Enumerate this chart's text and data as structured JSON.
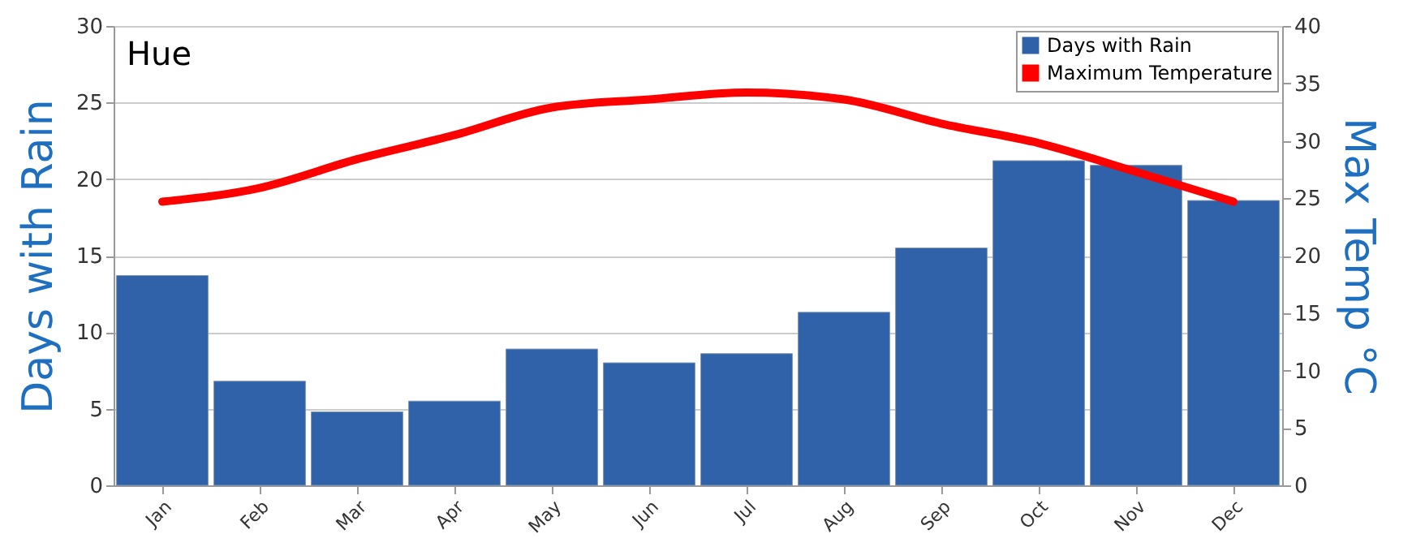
{
  "chart_data": {
    "type": "bar",
    "title": "Hue",
    "categories": [
      "Jan",
      "Feb",
      "Mar",
      "Apr",
      "May",
      "Jun",
      "Jul",
      "Aug",
      "Sep",
      "Oct",
      "Nov",
      "Dec"
    ],
    "series": [
      {
        "name": "Days with Rain",
        "color": "#2f62a8",
        "values": [
          13.7,
          6.8,
          4.8,
          5.5,
          8.9,
          8.0,
          8.6,
          11.3,
          15.5,
          21.2,
          20.9,
          18.6
        ]
      },
      {
        "name": "Maximum Temperature",
        "type": "line",
        "axis": "y2",
        "color": "#ff0000",
        "values": [
          24.7,
          25.9,
          28.4,
          30.5,
          32.9,
          33.6,
          34.2,
          33.6,
          31.5,
          29.8,
          27.3,
          24.7
        ]
      }
    ],
    "ylabel": "Days with Rain",
    "y2label": "Max Temp °C",
    "ylim": [
      0,
      30
    ],
    "yticks": [
      0,
      5,
      10,
      15,
      20,
      25,
      30
    ],
    "y2lim": [
      0,
      40
    ],
    "y2ticks": [
      0,
      5,
      10,
      15,
      20,
      25,
      30,
      35,
      40
    ],
    "grid": "y",
    "legend": "top right",
    "marker": "none",
    "line_style": "solid"
  }
}
